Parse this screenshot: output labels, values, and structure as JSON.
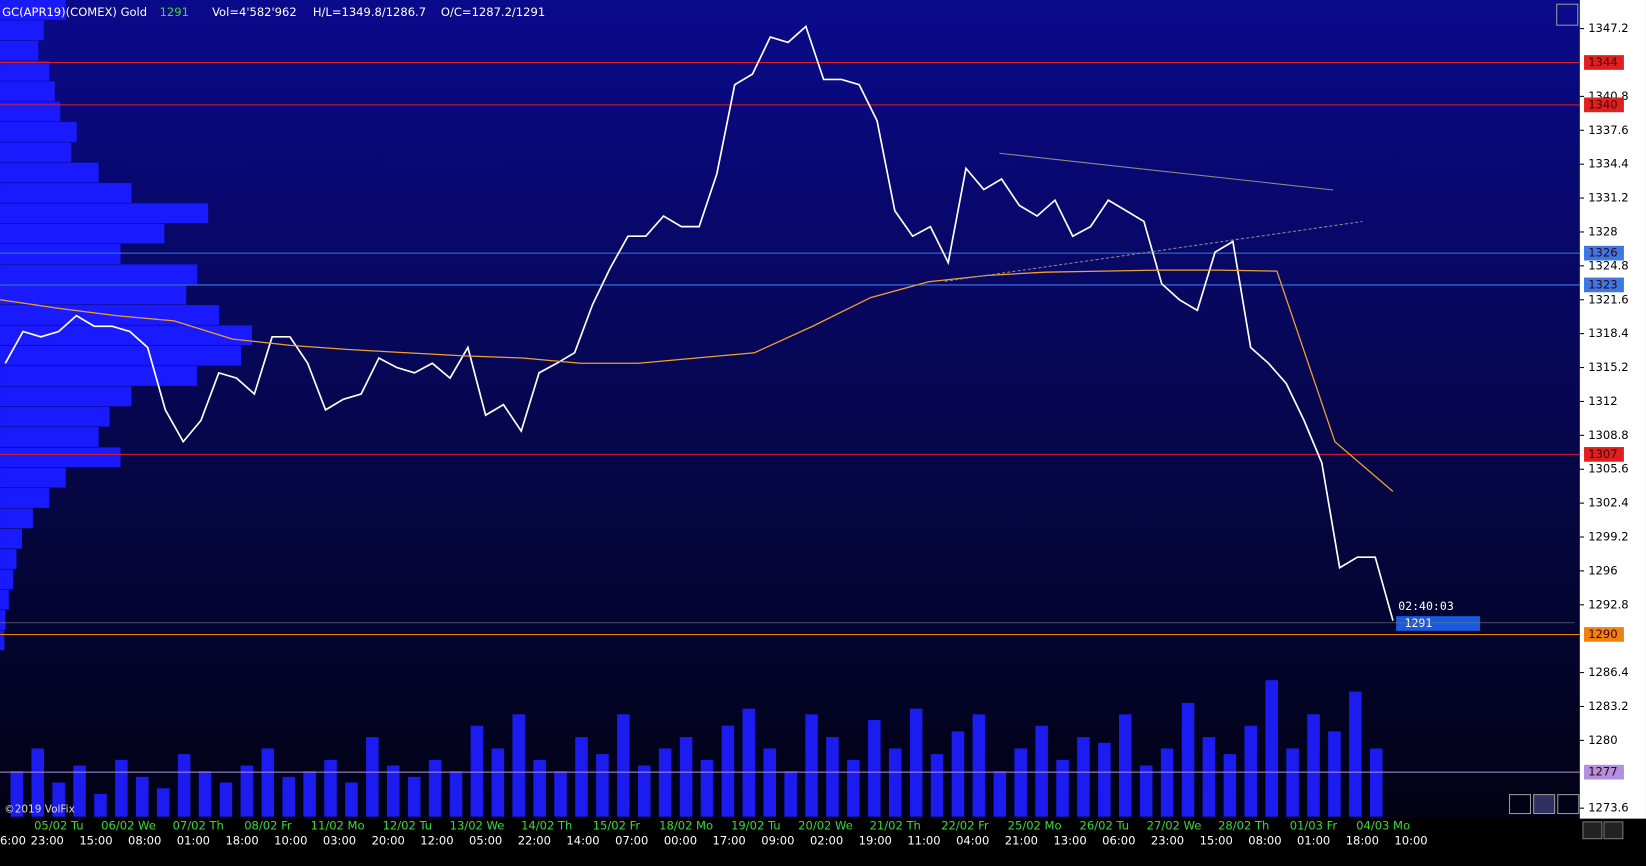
{
  "chart_data": {
    "type": "line",
    "symbol": "GC(APR19)(COMEX) Gold",
    "last": "1291",
    "volume_text": "Vol=4'582'962",
    "high_low": "H/L=1349.8/1286.7",
    "open_close": "O/C=1287.2/1291",
    "countdown": "02:40:03",
    "price_label": "1291",
    "copyright": "©2019 VolFix",
    "ylim": [
      1272.6,
      1349.9
    ],
    "yticks": [
      1347.2,
      1340.8,
      1337.6,
      1334.4,
      1331.2,
      1328,
      1324.8,
      1321.6,
      1318.4,
      1315.2,
      1312,
      1308.8,
      1305.6,
      1302.4,
      1299.2,
      1296,
      1292.8,
      1286.4,
      1283.2,
      1280,
      1273.6
    ],
    "date_labels": [
      "05/02 Tu",
      "06/02 We",
      "07/02 Th",
      "08/02 Fr",
      "11/02 Mo",
      "12/02 Tu",
      "13/02 We",
      "14/02 Th",
      "15/02 Fr",
      "18/02 Mo",
      "19/02 Tu",
      "20/02 We",
      "21/02 Th",
      "22/02 Fr",
      "25/02 Mo",
      "26/02 Tu",
      "27/02 We",
      "28/02 Th",
      "01/03 Fr",
      "04/03 Mo"
    ],
    "time_labels": [
      "6:00",
      "23:00",
      "15:00",
      "08:00",
      "01:00",
      "18:00",
      "10:00",
      "03:00",
      "20:00",
      "12:00",
      "05:00",
      "22:00",
      "14:00",
      "07:00",
      "00:00",
      "17:00",
      "09:00",
      "02:00",
      "19:00",
      "11:00",
      "04:00",
      "21:00",
      "13:00",
      "06:00",
      "23:00",
      "15:00",
      "08:00",
      "01:00",
      "18:00",
      "10:00"
    ],
    "levels": [
      {
        "value": 1344,
        "label": "1344",
        "color": "#e02020"
      },
      {
        "value": 1340,
        "label": "1340",
        "color": "#e02020"
      },
      {
        "value": 1326,
        "label": "1326",
        "color": "#3a78e8"
      },
      {
        "value": 1323,
        "label": "1323",
        "color": "#3a78e8"
      },
      {
        "value": 1307,
        "label": "1307",
        "color": "#e02020"
      },
      {
        "value": 1290,
        "label": "1290",
        "color": "#f08010"
      },
      {
        "value": 1277,
        "label": "1277",
        "color": "#b090e0"
      }
    ],
    "series": [
      {
        "color": "#ffffff",
        "values": [
          1315.6,
          1318.6,
          1318.1,
          1318.6,
          1320.1,
          1319.1,
          1319.1,
          1318.6,
          1317.1,
          1311.2,
          1308.2,
          1310.2,
          1314.7,
          1314.2,
          1312.7,
          1318.1,
          1318.1,
          1315.6,
          1311.2,
          1312.2,
          1312.7,
          1316.1,
          1315.2,
          1314.7,
          1315.6,
          1314.2,
          1317.1,
          1310.7,
          1311.7,
          1309.2,
          1314.7,
          1315.6,
          1316.6,
          1321.1,
          1324.6,
          1327.6,
          1327.6,
          1329.5,
          1328.5,
          1328.5,
          1333.5,
          1341.9,
          1342.9,
          1346.4,
          1345.9,
          1347.4,
          1342.4,
          1342.4,
          1341.9,
          1338.5,
          1330.0,
          1327.6,
          1328.5,
          1325.1,
          1334.0,
          1332.0,
          1333.0,
          1330.5,
          1329.5,
          1331.0,
          1327.6,
          1328.5,
          1331.0,
          1330.0,
          1329.0,
          1323.1,
          1321.6,
          1320.6,
          1326.1,
          1327.1,
          1317.1,
          1315.6,
          1313.7,
          1310.2,
          1306.2,
          1296.3,
          1297.3,
          1297.3,
          1291.3
        ]
      },
      {
        "color": "#f0a030",
        "values": [
          1321.6,
          1320.8,
          1320.1,
          1319.6,
          1317.9,
          1317.3,
          1316.9,
          1316.6,
          1316.3,
          1316.1,
          1315.6,
          1315.6,
          1316.1,
          1316.6,
          1319.1,
          1321.8,
          1323.3,
          1323.9,
          1324.2,
          1324.3,
          1324.4,
          1324.4,
          1324.3,
          1308.2,
          1303.5
        ]
      }
    ],
    "volume": {
      "color": "#1c1cf0",
      "values": [
        40,
        60,
        30,
        45,
        20,
        50,
        35,
        25,
        55,
        40,
        30,
        45,
        60,
        35,
        40,
        50,
        30,
        70,
        45,
        35,
        50,
        40,
        80,
        60,
        90,
        50,
        40,
        70,
        55,
        90,
        45,
        60,
        70,
        50,
        80,
        95,
        60,
        40,
        90,
        70,
        50,
        85,
        60,
        95,
        55,
        75,
        90,
        40,
        60,
        80,
        50,
        70,
        65,
        90,
        45,
        60,
        100,
        70,
        55,
        80,
        120,
        60,
        90,
        75,
        110,
        60
      ]
    },
    "profile": {
      "color": "#1a1aff",
      "values": [
        60,
        40,
        35,
        45,
        50,
        55,
        70,
        65,
        90,
        120,
        190,
        150,
        110,
        180,
        170,
        200,
        230,
        220,
        180,
        120,
        100,
        90,
        110,
        60,
        45,
        30,
        20,
        15,
        12,
        8,
        5,
        4
      ]
    }
  }
}
